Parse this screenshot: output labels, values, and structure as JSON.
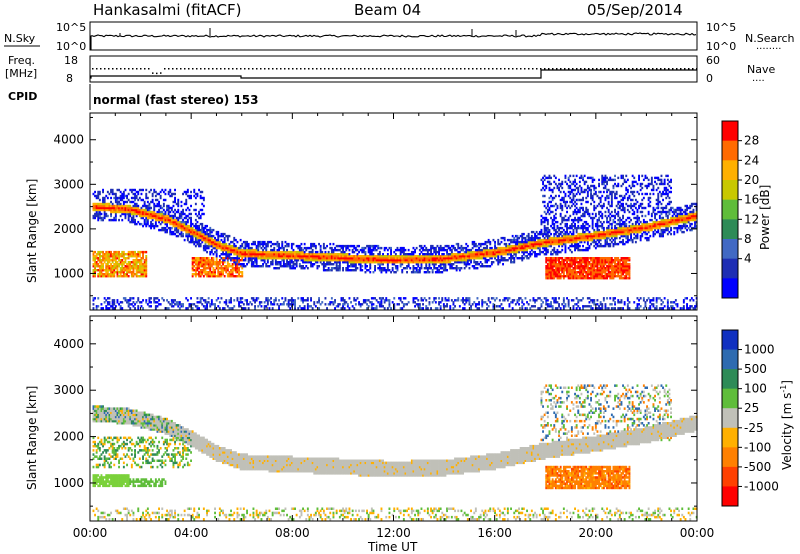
{
  "header": {
    "station": "Hankasalmi (fitACF)",
    "beam": "Beam 04",
    "date": "05/Sep/2014"
  },
  "top_panels": {
    "nsky_label": "N.Sky",
    "nsky_ticks": [
      "10^5",
      "10^0"
    ],
    "nsearch_label": "N.Search",
    "nsearch_ticks": [
      "10^5",
      "10^0"
    ],
    "freq_label_1": "Freq.",
    "freq_label_2": "[MHz]",
    "freq_ticks": [
      "18",
      "8"
    ],
    "nave_label": "Nave",
    "nave_ticks": [
      "60",
      "0"
    ],
    "cpid_label": "CPID",
    "cpid_text": "normal (fast stereo) 153"
  },
  "chart_data": [
    {
      "type": "heatmap",
      "title": "",
      "ylabel": "Slant Range [km]",
      "xlabel": "",
      "ylim": [
        180,
        4600
      ],
      "yticks": [
        "1000",
        "2000",
        "3000",
        "4000"
      ],
      "xticks": [
        "00:00",
        "04:00",
        "08:00",
        "12:00",
        "16:00",
        "20:00",
        "00:00"
      ],
      "colorbar": {
        "label": "Power [dB]",
        "ticks": [
          "28",
          "24",
          "20",
          "16",
          "12",
          "8",
          "4"
        ],
        "colors": [
          "#ff0000",
          "#ff6a00",
          "#ffb000",
          "#c8c800",
          "#5fbd3a",
          "#2e8b57",
          "#4169c4",
          "#1e2eb4",
          "#0000ff"
        ]
      }
    },
    {
      "type": "heatmap",
      "title": "",
      "ylabel": "Slant Range [km]",
      "xlabel": "Time UT",
      "ylim": [
        180,
        4600
      ],
      "yticks": [
        "1000",
        "2000",
        "3000",
        "4000"
      ],
      "xticks": [
        "00:00",
        "04:00",
        "08:00",
        "12:00",
        "16:00",
        "20:00",
        "00:00"
      ],
      "colorbar": {
        "label": "Velocity [m s",
        "label_sup": "-1",
        "label_end": "]",
        "ticks": [
          "1000",
          "500",
          "100",
          "25",
          "-25",
          "-100",
          "-500",
          "-1000"
        ],
        "colors": [
          "#1030c0",
          "#2e6bb0",
          "#2e8b57",
          "#5fbd3a",
          "#c0c0b8",
          "#ffb000",
          "#ff8000",
          "#ff4000",
          "#ff0000"
        ]
      }
    }
  ]
}
